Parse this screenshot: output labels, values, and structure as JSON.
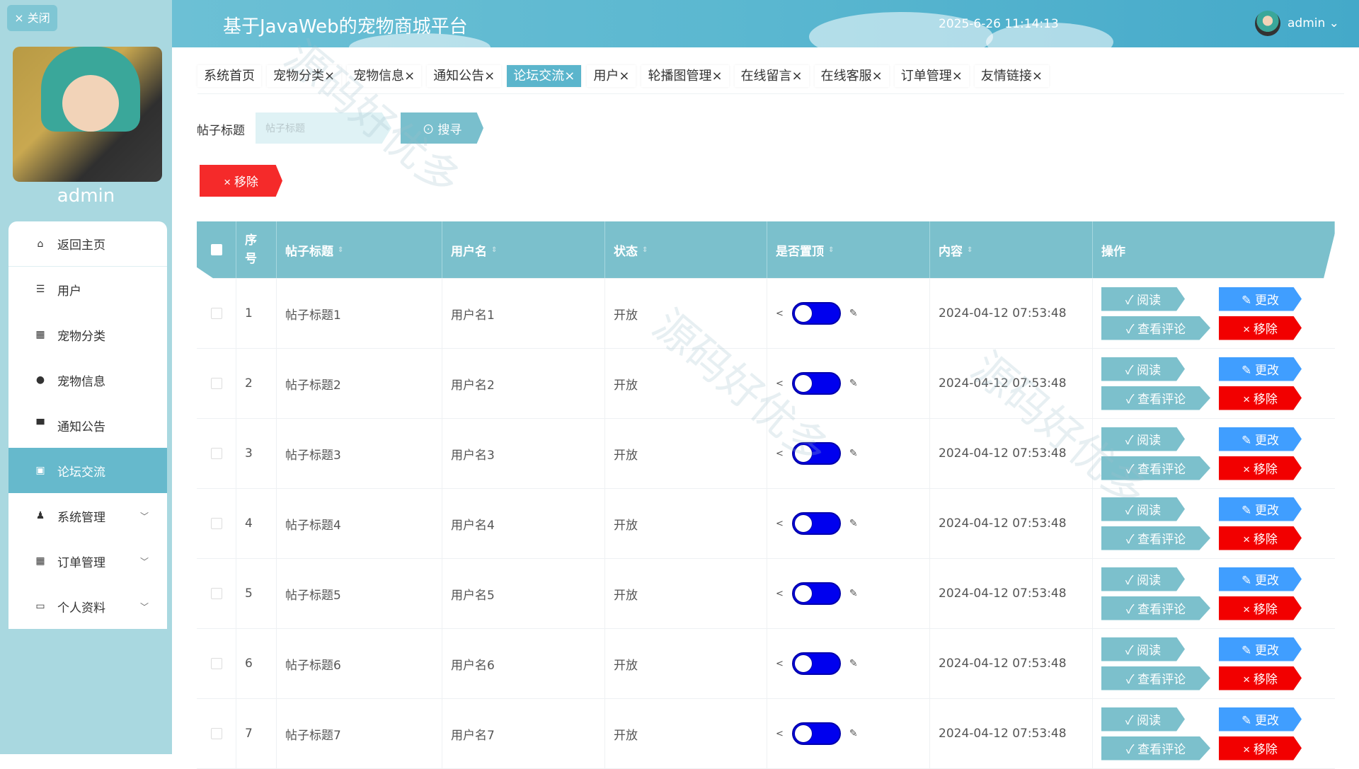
{
  "sidebar": {
    "close_label": "× 关闭",
    "username": "admin",
    "items": [
      {
        "label": "返回主页",
        "icon": "home-icon",
        "glyph": "⌂"
      },
      {
        "label": "用户",
        "icon": "sliders-icon",
        "glyph": "☰"
      },
      {
        "label": "宠物分类",
        "icon": "grid-icon",
        "glyph": "▦"
      },
      {
        "label": "宠物信息",
        "icon": "pet-icon",
        "glyph": "●"
      },
      {
        "label": "通知公告",
        "icon": "monitor-icon",
        "glyph": "▀"
      },
      {
        "label": "论坛交流",
        "icon": "clipboard-icon",
        "glyph": "▣",
        "active": true
      },
      {
        "label": "系统管理",
        "icon": "user-icon",
        "glyph": "♟",
        "chevron": true
      },
      {
        "label": "订单管理",
        "icon": "apps-icon",
        "glyph": "▦",
        "chevron": true
      },
      {
        "label": "个人资料",
        "icon": "card-icon",
        "glyph": "▭",
        "chevron": true
      }
    ]
  },
  "header": {
    "title": "基于JavaWeb的宠物商城平台",
    "datetime": "2025-6-26 11:14:13",
    "user": "admin ⌄"
  },
  "tabs": [
    {
      "label": "系统首页"
    },
    {
      "label": "宠物分类×"
    },
    {
      "label": "宠物信息×"
    },
    {
      "label": "通知公告×"
    },
    {
      "label": "论坛交流×",
      "active": true
    },
    {
      "label": "用户×"
    },
    {
      "label": "轮播图管理×"
    },
    {
      "label": "在线留言×"
    },
    {
      "label": "在线客服×"
    },
    {
      "label": "订单管理×"
    },
    {
      "label": "友情链接×"
    }
  ],
  "search": {
    "label": "帖子标题",
    "placeholder": "帖子标题",
    "button": "⊙ 搜寻"
  },
  "toolbar": {
    "delete": "× 移除"
  },
  "table": {
    "headers": [
      "序号",
      "帖子标题",
      "用户名",
      "状态",
      "是否置顶",
      "内容",
      "操作"
    ],
    "actions": {
      "read": "✓ 阅读",
      "edit": "✎ 更改",
      "comments": "✓ 查看评论",
      "delete": "× 移除"
    },
    "rows": [
      {
        "no": "1",
        "title": "帖子标题1",
        "user": "用户名1",
        "status": "开放",
        "pinned": true,
        "time": "2024-04-12 07:53:48"
      },
      {
        "no": "2",
        "title": "帖子标题2",
        "user": "用户名2",
        "status": "开放",
        "pinned": true,
        "time": "2024-04-12 07:53:48"
      },
      {
        "no": "3",
        "title": "帖子标题3",
        "user": "用户名3",
        "status": "开放",
        "pinned": true,
        "time": "2024-04-12 07:53:48"
      },
      {
        "no": "4",
        "title": "帖子标题4",
        "user": "用户名4",
        "status": "开放",
        "pinned": true,
        "time": "2024-04-12 07:53:48"
      },
      {
        "no": "5",
        "title": "帖子标题5",
        "user": "用户名5",
        "status": "开放",
        "pinned": true,
        "time": "2024-04-12 07:53:48"
      },
      {
        "no": "6",
        "title": "帖子标题6",
        "user": "用户名6",
        "status": "开放",
        "pinned": true,
        "time": "2024-04-12 07:53:48"
      },
      {
        "no": "7",
        "title": "帖子标题7",
        "user": "用户名7",
        "status": "开放",
        "pinned": true,
        "time": "2024-04-12 07:53:48"
      }
    ]
  },
  "colors": {
    "header": "#5ab7d0",
    "table_header": "#7bc0cc",
    "primary": "#409eff",
    "danger": "#f20000",
    "toggle": "#0000ee"
  }
}
